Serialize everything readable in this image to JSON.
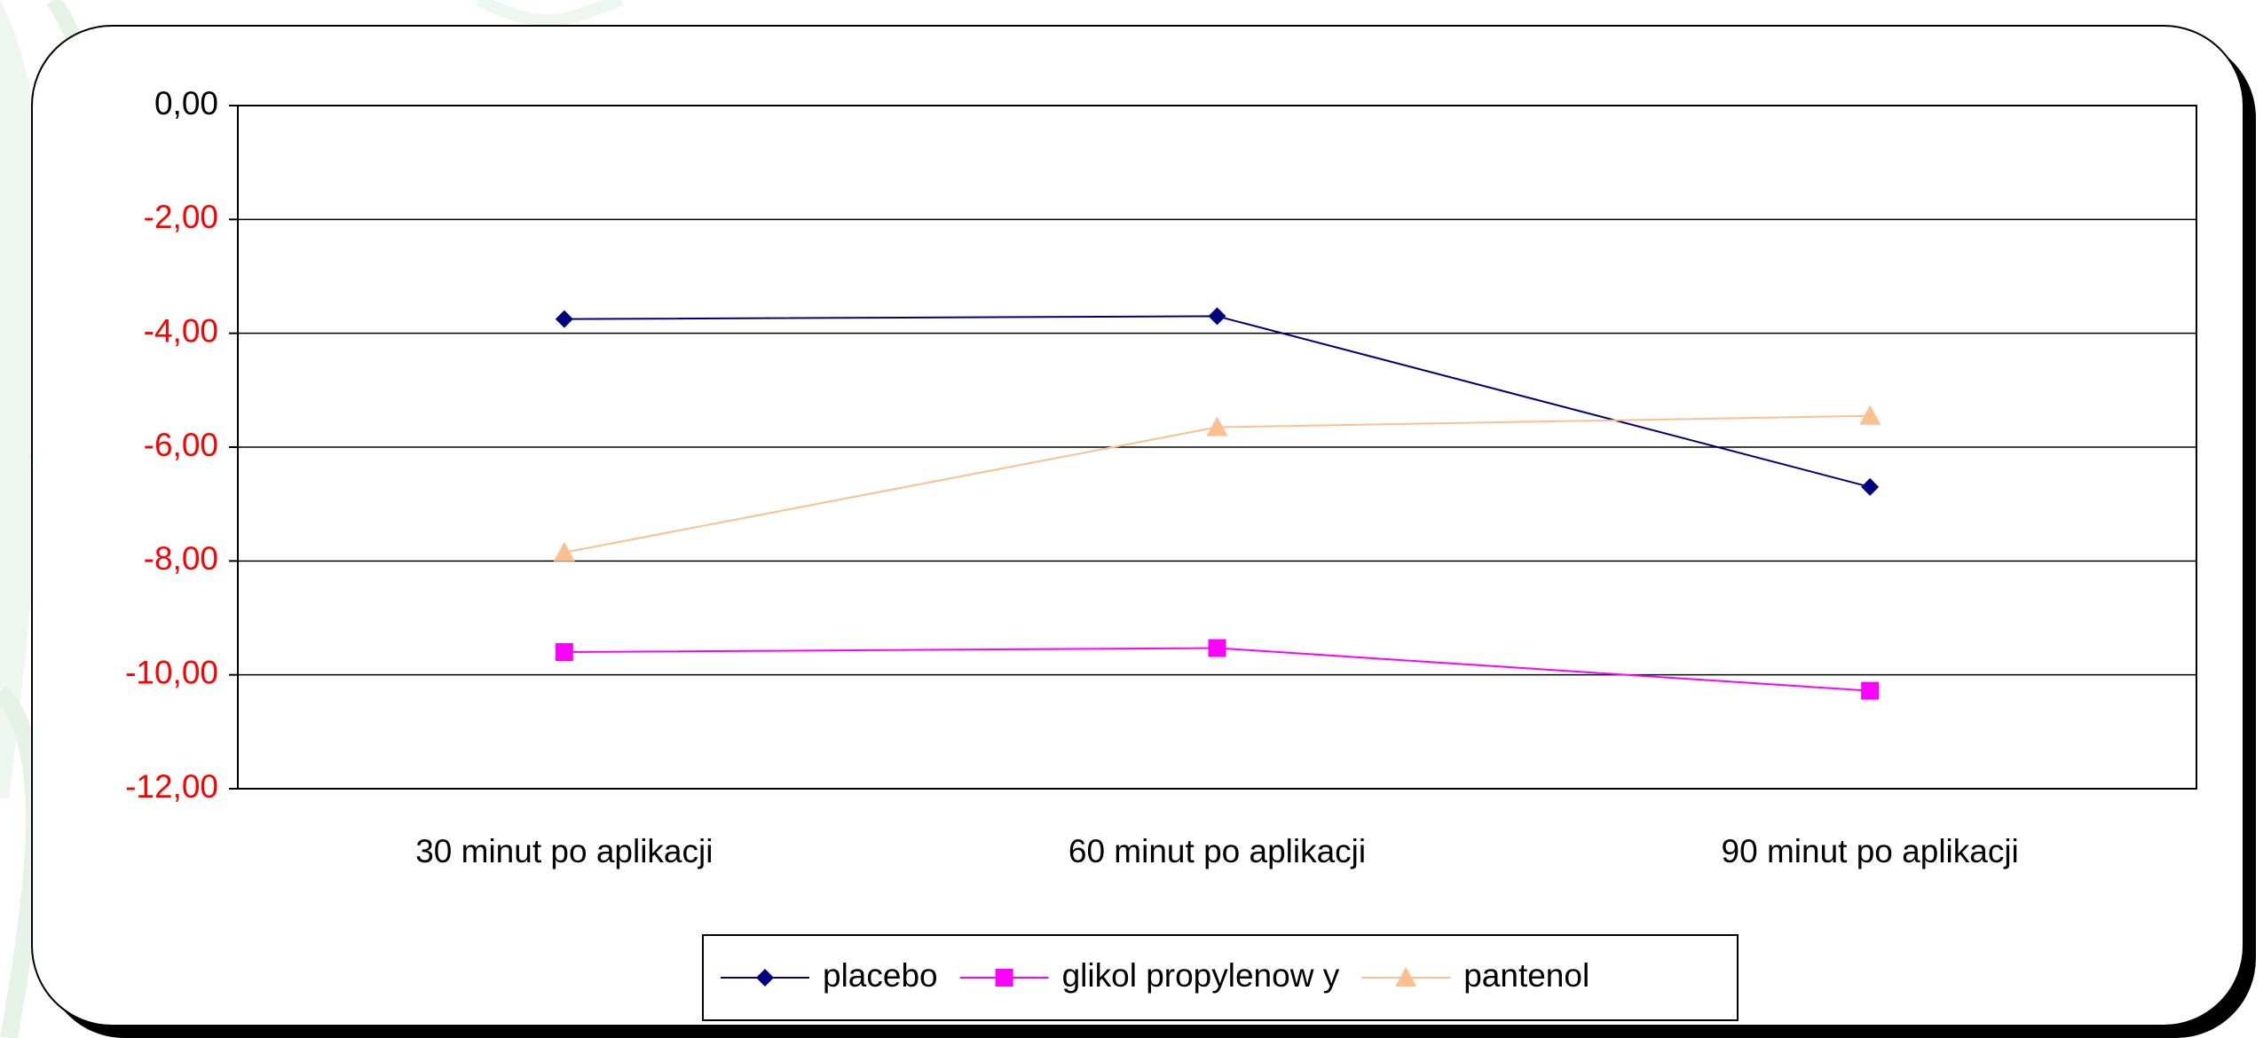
{
  "chart_data": {
    "type": "line",
    "categories": [
      "30 minut po aplikacji",
      "60 minut po aplikacji",
      "90 minut po aplikacji"
    ],
    "series": [
      {
        "name": "placebo",
        "color": "#000080",
        "marker": "diamond",
        "values": [
          -3.75,
          -3.7,
          -6.7
        ]
      },
      {
        "name": "glikol propylenow y",
        "color": "#ff00ff",
        "marker": "square",
        "values": [
          -9.6,
          -9.53,
          -10.28
        ]
      },
      {
        "name": "pantenol",
        "color": "#fac090",
        "marker": "triangle",
        "values": [
          -7.85,
          -5.65,
          -5.45
        ]
      }
    ],
    "ylim": [
      -12,
      0
    ],
    "yticks": [
      {
        "value": 0,
        "label": "0,00"
      },
      {
        "value": -2,
        "label": "-2,00"
      },
      {
        "value": -4,
        "label": "-4,00"
      },
      {
        "value": -6,
        "label": "-6,00"
      },
      {
        "value": -8,
        "label": "-8,00"
      },
      {
        "value": -10,
        "label": "-10,00"
      },
      {
        "value": -12,
        "label": "-12,00"
      }
    ],
    "grid": true,
    "legend": "bottom"
  }
}
